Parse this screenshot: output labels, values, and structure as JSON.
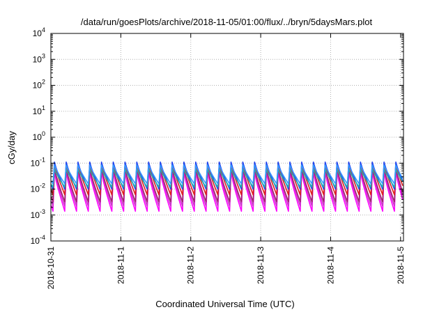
{
  "chart_data": {
    "type": "line",
    "title": "/data/run/goesPlots/archive/2018-11-05/01:00/flux/../bryn/5daysMars.plot",
    "xlabel": "Coordinated Universal Time (UTC)",
    "ylabel": "cGy/day",
    "yscale": "log",
    "ylim": [
      0.0001,
      10000
    ],
    "yticks": [
      {
        "value": 0.0001,
        "base": "10",
        "exp": "-4"
      },
      {
        "value": 0.001,
        "base": "10",
        "exp": "-3"
      },
      {
        "value": 0.01,
        "base": "10",
        "exp": "-2"
      },
      {
        "value": 0.1,
        "base": "10",
        "exp": "-1"
      },
      {
        "value": 1,
        "base": "10",
        "exp": "0"
      },
      {
        "value": 10,
        "base": "10",
        "exp": "1"
      },
      {
        "value": 100,
        "base": "10",
        "exp": "2"
      },
      {
        "value": 1000,
        "base": "10",
        "exp": "3"
      },
      {
        "value": 10000,
        "base": "10",
        "exp": "4"
      }
    ],
    "xlim": [
      "2018-10-31T00:00",
      "2018-11-05T01:00"
    ],
    "xticks": [
      "2018-10-31",
      "2018-11-1",
      "2018-11-2",
      "2018-11-3",
      "2018-11-4",
      "2018-11-5"
    ],
    "grid": true,
    "oscillation": {
      "period_hours": 4.04,
      "start_phase": 0.0,
      "description_values": "sawtooth peaks near 0.1 falling to series minima"
    },
    "series": [
      {
        "color": "#ff00ff",
        "peak": 0.045,
        "trough": 0.0014
      },
      {
        "color": "#cc33cc",
        "peak": 0.055,
        "trough": 0.0022
      },
      {
        "color": "#a0206e",
        "peak": 0.065,
        "trough": 0.0032
      },
      {
        "color": "#e02020",
        "peak": 0.095,
        "trough": 0.006
      },
      {
        "color": "#2244ee",
        "peak": 0.11,
        "trough": 0.01
      },
      {
        "color": "#20b0b0",
        "peak": 0.06,
        "trough": 0.012
      },
      {
        "color": "#3399ff",
        "peak": 0.085,
        "trough": 0.016
      }
    ]
  }
}
